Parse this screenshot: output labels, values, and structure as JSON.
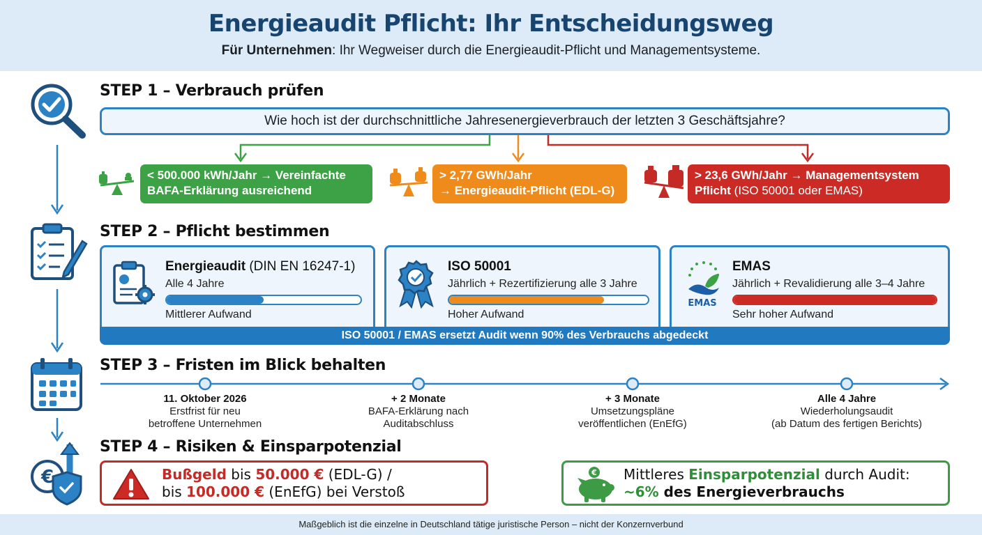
{
  "header": {
    "title": "Energieaudit Pflicht: Ihr Entscheidungsweg",
    "subtitle_bold": "Für Unternehmen",
    "subtitle_rest": ": Ihr Wegweiser durch die Energieaudit-Pflicht und Managementsysteme."
  },
  "step1": {
    "title": "STEP 1 – Verbrauch prüfen",
    "question": "Wie hoch ist der durchschnittliche Jahresenergieverbrauch der letzten 3 Geschäftsjahre?",
    "thresholds": [
      {
        "line1": "< 500.000 kWh/Jahr → Vereinfachte",
        "line2": "BAFA-Erklärung ausreichend",
        "color": "#3da245"
      },
      {
        "line1": "> 2,77 GWh/Jahr",
        "line2": "→ Energieaudit-Pflicht (EDL-G)",
        "color": "#ef8b1b"
      },
      {
        "line1": "> 23,6 GWh/Jahr → Managementsystem",
        "line2_bold": "Pflicht",
        "line2_rest": " (ISO 50001 oder EMAS)",
        "color": "#cc2a24"
      }
    ]
  },
  "step2": {
    "title": "STEP 2 – Pflicht bestimmen",
    "cards": [
      {
        "title": "Energieaudit",
        "title_suffix": " (DIN EN 16247-1)",
        "frequency": "Alle 4 Jahre",
        "effort": "Mittlerer Aufwand",
        "effort_fraction": 0.5,
        "bar_color": "#2b82c4",
        "icon": "clipboard-gear-icon"
      },
      {
        "title": "ISO 50001",
        "title_suffix": "",
        "frequency": "Jährlich + Rezertifizierung alle 3 Jahre",
        "effort": "Hoher Aufwand",
        "effort_fraction": 0.78,
        "bar_color": "#ef8b1b",
        "icon": "certificate-badge-icon"
      },
      {
        "title": "EMAS",
        "title_suffix": "",
        "frequency": "Jährlich + Revalidierung alle 3–4 Jahre",
        "effort": "Sehr hoher Aufwand",
        "effort_fraction": 1.0,
        "bar_color": "#cc2a24",
        "icon": "emas-logo-icon",
        "logo_text": "EMAS"
      }
    ],
    "banner": "ISO 50001 / EMAS ersetzt Audit wenn 90% des Verbrauchs abgedeckt"
  },
  "step3": {
    "title": "STEP 3 – Fristen im Blick behalten",
    "milestones": [
      {
        "head": "11. Oktober 2026",
        "line1": "Erstfrist für neu",
        "line2": "betroffene Unternehmen"
      },
      {
        "head": "+ 2 Monate",
        "line1": "BAFA-Erklärung nach",
        "line2": "Auditabschluss"
      },
      {
        "head": "+ 3 Monate",
        "line1": "Umsetzungspläne",
        "line2": "veröffentlichen (EnEfG)"
      },
      {
        "head": "Alle 4 Jahre",
        "line1": "Wiederholungsaudit",
        "line2": "(ab Datum des fertigen Berichts)"
      }
    ]
  },
  "step4": {
    "title": "STEP 4 – Risiken & Einsparpotenzial",
    "risk": {
      "w1": "Bußgeld",
      "w2": " bis ",
      "w3": "50.000 €",
      "w4": " (EDL-G) /",
      "w5": "bis ",
      "w6": "100.000 €",
      "w7": " (EnEfG) bei Verstoß"
    },
    "saving": {
      "w1": "Mittleres ",
      "w2": "Einsparpotenzial",
      "w3": " durch Audit:",
      "w4": "~6%",
      "w5": " des Energieverbrauchs"
    }
  },
  "footer": {
    "text": "Maßgeblich ist die einzelne in Deutschland tätige juristische Person – nicht der Konzernverbund"
  },
  "colors": {
    "primary": "#2b82c4",
    "green": "#3da245",
    "orange": "#ef8b1b",
    "red": "#cc2a24",
    "navy": "#18456f"
  }
}
